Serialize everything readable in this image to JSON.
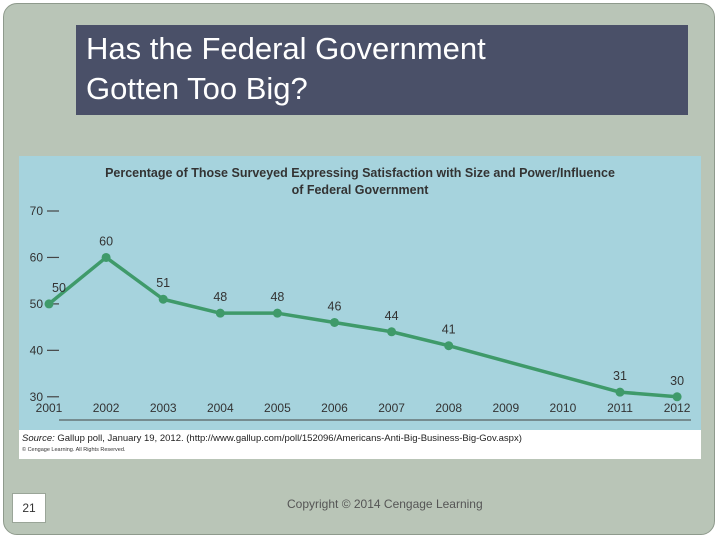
{
  "title_lines": [
    "Has the Federal Government",
    "Gotten Too Big?"
  ],
  "slide_number": "21",
  "footer": "Copyright © 2014 Cengage Learning",
  "source_label": "Source:",
  "source_text": " Gallup poll, January 19, 2012. (http://www.gallup.com/poll/152096/Americans-Anti-Big-Business-Big-Gov.aspx)",
  "publisher_note": "© Cengage Learning. All Rights Reserved.",
  "colors": {
    "slide_background": "#b9c5b7",
    "title_background": "#4a5068",
    "chart_background": "#a6d3dd",
    "line": "#3f9a6a"
  },
  "chart_data": {
    "type": "line",
    "title_lines": [
      "Percentage of Those Surveyed Expressing Satisfaction with Size and Power/Influence",
      "of Federal Government"
    ],
    "categories": [
      "2001",
      "2002",
      "2003",
      "2004",
      "2005",
      "2006",
      "2007",
      "2008",
      "2009",
      "2010",
      "2011",
      "2012"
    ],
    "points": [
      {
        "x": "2001",
        "y": 50,
        "label": "50"
      },
      {
        "x": "2002",
        "y": 60,
        "label": "60"
      },
      {
        "x": "2003",
        "y": 51,
        "label": "51"
      },
      {
        "x": "2004",
        "y": 48,
        "label": "48"
      },
      {
        "x": "2005",
        "y": 48,
        "label": "48"
      },
      {
        "x": "2006",
        "y": 46,
        "label": "46"
      },
      {
        "x": "2007",
        "y": 44,
        "label": "44"
      },
      {
        "x": "2008",
        "y": 41,
        "label": "41"
      },
      {
        "x": "2011",
        "y": 31,
        "label": "31"
      },
      {
        "x": "2012",
        "y": 30,
        "label": "30"
      }
    ],
    "y_ticks": [
      30,
      40,
      50,
      60,
      70
    ],
    "ylim": [
      25,
      70
    ],
    "grid": false,
    "legend": "none"
  }
}
